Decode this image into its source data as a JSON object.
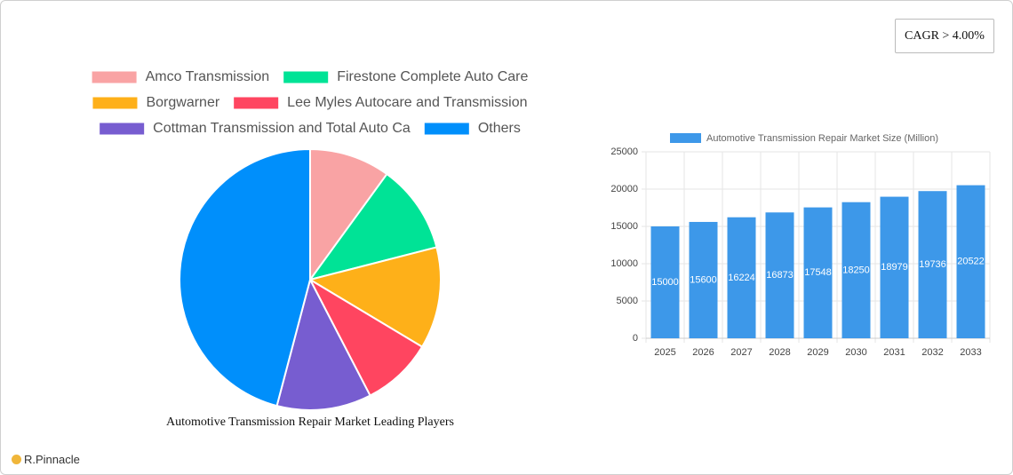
{
  "chart_data": [
    {
      "type": "pie",
      "title": "Automotive Transmission Repair Market Leading Players",
      "categories": [
        "Amco Transmission",
        "Firestone Complete Auto Care",
        "Borgwarner",
        "Lee Myles Autocare and Transmission",
        "Cottman Transmission and Total Auto Ca",
        "Others"
      ],
      "values": [
        10,
        11,
        12.6,
        8.8,
        11.7,
        45.9
      ],
      "colors": [
        "#f9a3a4",
        "#00e396",
        "#feb019",
        "#ff4560",
        "#775dd0",
        "#008ffb"
      ]
    },
    {
      "type": "bar",
      "categories": [
        "2025",
        "2026",
        "2027",
        "2028",
        "2029",
        "2030",
        "2031",
        "2032",
        "2033"
      ],
      "series": [
        {
          "name": "Automotive Transmission Repair Market Size (Million)",
          "color": "#3d98e9",
          "values": [
            15000,
            15600,
            16224,
            16873,
            17548,
            18250,
            18979,
            19736,
            20522
          ]
        }
      ],
      "ylim": [
        0,
        25000
      ],
      "yticks": [
        0,
        5000,
        10000,
        15000,
        20000,
        25000
      ],
      "grid": true
    }
  ],
  "badge": "CAGR > 4.00%",
  "logo": "R.Pinnacle"
}
